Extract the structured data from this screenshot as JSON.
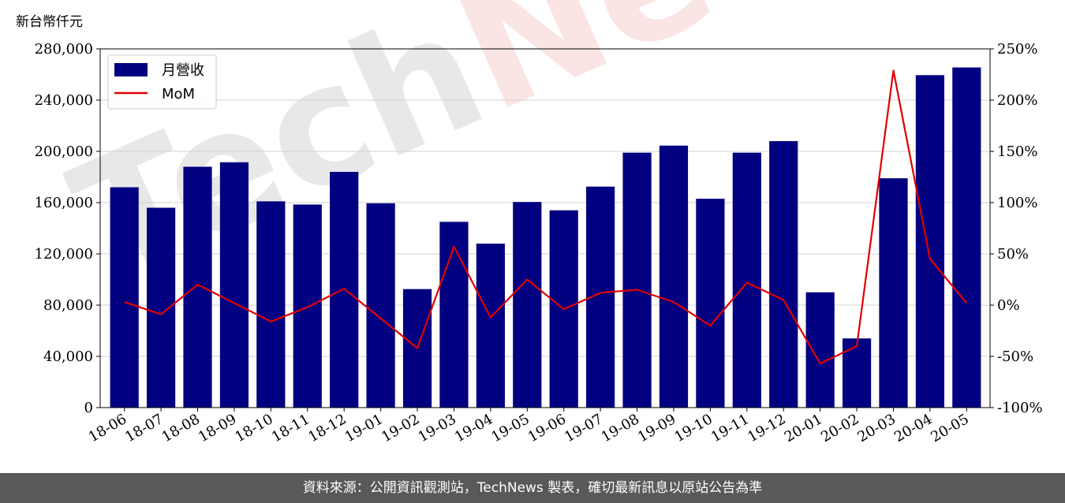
{
  "chart_data": {
    "type": "bar",
    "ylabel": "新台幣仟元",
    "categories": [
      "18-06",
      "18-07",
      "18-08",
      "18-09",
      "18-10",
      "18-11",
      "18-12",
      "19-01",
      "19-02",
      "19-03",
      "19-04",
      "19-05",
      "19-06",
      "19-07",
      "19-08",
      "19-09",
      "19-10",
      "19-11",
      "19-12",
      "20-01",
      "20-02",
      "20-03",
      "20-04",
      "20-05"
    ],
    "series": [
      {
        "name": "月營收",
        "type": "bar",
        "axis": "left",
        "color": "#000080",
        "values": [
          172000,
          156000,
          188000,
          191500,
          161000,
          158500,
          184000,
          159500,
          92500,
          145000,
          128000,
          160500,
          154000,
          172500,
          199000,
          204500,
          163000,
          199000,
          208000,
          90000,
          54000,
          179000,
          259500,
          265500
        ]
      },
      {
        "name": "MoM",
        "type": "line",
        "axis": "right",
        "color": "#e00000",
        "values": [
          3,
          -9,
          20,
          2,
          -16,
          -2,
          16,
          -13,
          -42,
          57,
          -12,
          25,
          -4,
          12,
          15,
          3,
          -20,
          22,
          5,
          -57,
          -40,
          229,
          45,
          2
        ]
      }
    ],
    "left_axis": {
      "ylim": [
        0,
        280000
      ],
      "ticks": [
        "0",
        "40,000",
        "80,000",
        "120,000",
        "160,000",
        "200,000",
        "240,000",
        "280,000"
      ],
      "tick_values": [
        0,
        40000,
        80000,
        120000,
        160000,
        200000,
        240000,
        280000
      ]
    },
    "right_axis": {
      "ylim": [
        -100,
        250
      ],
      "ticks": [
        "-100%",
        "-50%",
        "0%",
        "50%",
        "100%",
        "150%",
        "200%",
        "250%"
      ],
      "tick_values": [
        -100,
        -50,
        0,
        50,
        100,
        150,
        200,
        250
      ]
    },
    "grid": "horizontal",
    "legend_position": "top-left"
  },
  "watermark": "TechNews",
  "footer": "資料來源：公開資訊觀測站，TechNews 製表，確切最新訊息以原站公告為準"
}
